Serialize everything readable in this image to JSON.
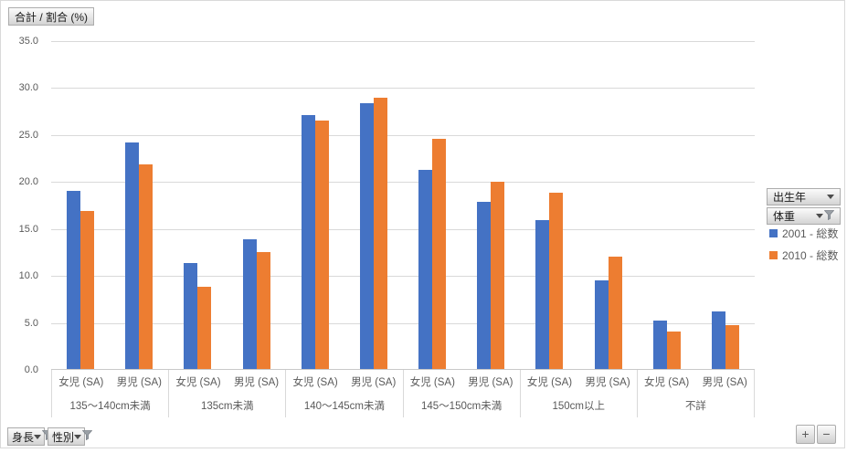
{
  "header": {
    "values_button": "合計 / 割合 (%)"
  },
  "legend": {
    "field_buttons": [
      {
        "label": "出生年",
        "has_filter": false
      },
      {
        "label": "体重",
        "has_filter": true
      }
    ],
    "items": [
      {
        "label": "2001 - 総数",
        "color": "#4472C4"
      },
      {
        "label": "2010 - 総数",
        "color": "#ED7D31"
      }
    ]
  },
  "axis_field_buttons": [
    {
      "label": "身長",
      "has_filter": true
    },
    {
      "label": "性別",
      "has_filter": true
    }
  ],
  "zoom_controls": {
    "zoom_in": "+",
    "zoom_out": "−"
  },
  "chart_data": {
    "type": "bar",
    "title": "合計 / 割合 (%)",
    "xlabel": "",
    "ylabel": "割合 (%)",
    "ylim": [
      0,
      35
    ],
    "yticks": [
      0,
      5,
      10,
      15,
      20,
      25,
      30,
      35
    ],
    "ytick_labels": [
      "0.0",
      "5.0",
      "10.0",
      "15.0",
      "20.0",
      "25.0",
      "30.0",
      "35.0"
    ],
    "grid": true,
    "legend_position": "right",
    "series_names": [
      "2001 - 総数",
      "2010 - 総数"
    ],
    "series_colors": [
      "#4472C4",
      "#ED7D31"
    ],
    "subcategories": [
      "女児 (SA)",
      "男児 (SA)"
    ],
    "groups": [
      {
        "label": "135～140cm未満",
        "clusters": [
          {
            "label": "女児 (SA)",
            "values": [
              19.0,
              16.9
            ]
          },
          {
            "label": "男児 (SA)",
            "values": [
              24.2,
              21.8
            ]
          }
        ]
      },
      {
        "label": "135cm未満",
        "clusters": [
          {
            "label": "女児 (SA)",
            "values": [
              11.3,
              8.8
            ]
          },
          {
            "label": "男児 (SA)",
            "values": [
              13.8,
              12.5
            ]
          }
        ]
      },
      {
        "label": "140～145cm未満",
        "clusters": [
          {
            "label": "女児 (SA)",
            "values": [
              27.1,
              26.5
            ]
          },
          {
            "label": "男児 (SA)",
            "values": [
              28.4,
              29.0
            ]
          }
        ]
      },
      {
        "label": "145～150cm未満",
        "clusters": [
          {
            "label": "女児 (SA)",
            "values": [
              21.3,
              24.6
            ]
          },
          {
            "label": "男児 (SA)",
            "values": [
              17.8,
              20.0
            ]
          }
        ]
      },
      {
        "label": "150cm以上",
        "clusters": [
          {
            "label": "女児 (SA)",
            "values": [
              15.9,
              18.8
            ]
          },
          {
            "label": "男児 (SA)",
            "values": [
              9.5,
              12.0
            ]
          }
        ]
      },
      {
        "label": "不詳",
        "clusters": [
          {
            "label": "女児 (SA)",
            "values": [
              5.2,
              4.0
            ]
          },
          {
            "label": "男児 (SA)",
            "values": [
              6.1,
              4.7
            ]
          }
        ]
      }
    ]
  }
}
